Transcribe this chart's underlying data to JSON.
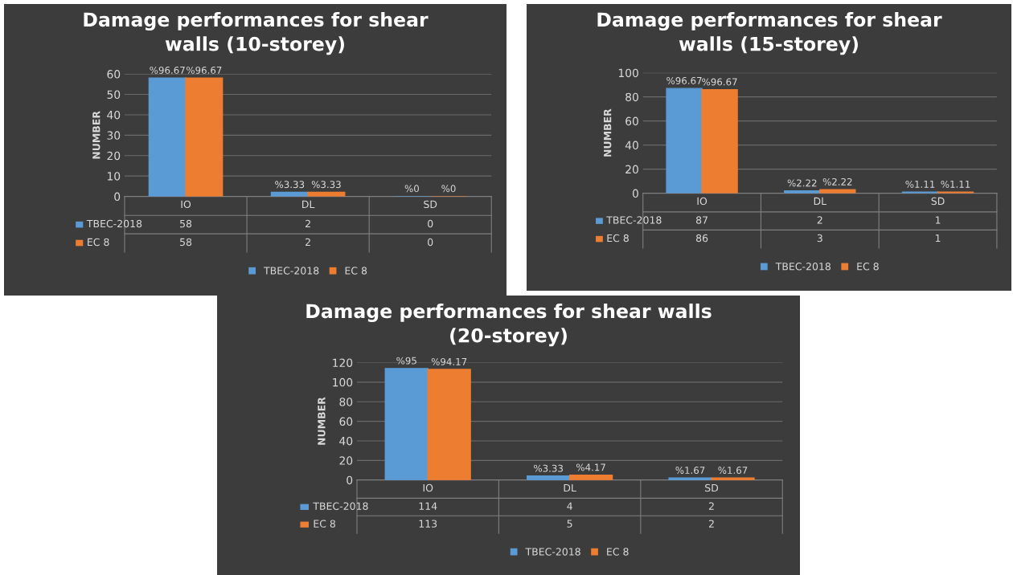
{
  "chart_data": [
    {
      "type": "bar",
      "title": "Damage performances for shear walls (10-storey)",
      "ylabel": "NUMBER",
      "categories": [
        "IO",
        "DL",
        "SD"
      ],
      "ylim": [
        0,
        60
      ],
      "yticks": [
        0,
        10,
        20,
        30,
        40,
        50,
        60
      ],
      "grid": "y",
      "legend": "bottom",
      "data_labels": true,
      "series": [
        {
          "name": "TBEC-2018",
          "color": "#5b9bd5",
          "values": [
            58,
            2,
            0
          ]
        },
        {
          "name": "EC 8",
          "color": "#ed7d31",
          "values": [
            58,
            2,
            0
          ]
        }
      ],
      "annotations": [
        {
          "text": "%96.67",
          "x": "IO",
          "y": 58
        },
        {
          "text": "%96.67",
          "x": "IO",
          "y": 58
        },
        {
          "text": "%3.33",
          "x": "DL",
          "y": 2
        },
        {
          "text": "%3.33",
          "x": "DL",
          "y": 2
        },
        {
          "text": "%0",
          "x": "SD",
          "y": 0
        },
        {
          "text": "%0",
          "x": "SD",
          "y": 0
        }
      ]
    },
    {
      "type": "bar",
      "title": "Damage performances for shear walls (15-storey)",
      "ylabel": "NUMBER",
      "categories": [
        "IO",
        "DL",
        "SD"
      ],
      "ylim": [
        0,
        100
      ],
      "yticks": [
        0,
        20,
        40,
        60,
        80,
        100
      ],
      "grid": "y",
      "legend": "bottom",
      "data_labels": true,
      "series": [
        {
          "name": "TBEC-2018",
          "color": "#5b9bd5",
          "values": [
            87,
            2,
            1
          ]
        },
        {
          "name": "EC 8",
          "color": "#ed7d31",
          "values": [
            86,
            3,
            1
          ]
        }
      ],
      "annotations": [
        {
          "text": "%96.67",
          "x": "IO",
          "y": 87
        },
        {
          "text": "%96.67",
          "x": "IO",
          "y": 86
        },
        {
          "text": "%2.22",
          "x": "DL",
          "y": 2
        },
        {
          "text": "%2.22",
          "x": "DL",
          "y": 3
        },
        {
          "text": "%1.11",
          "x": "SD",
          "y": 1
        },
        {
          "text": "%1.11",
          "x": "SD",
          "y": 1
        }
      ]
    },
    {
      "type": "bar",
      "title": "Damage performances for shear walls (20-storey)",
      "ylabel": "NUMBER",
      "categories": [
        "IO",
        "DL",
        "SD"
      ],
      "ylim": [
        0,
        120
      ],
      "yticks": [
        0,
        20,
        40,
        60,
        80,
        100,
        120
      ],
      "grid": "y",
      "legend": "bottom",
      "data_labels": true,
      "series": [
        {
          "name": "TBEC-2018",
          "color": "#5b9bd5",
          "values": [
            114,
            4,
            2
          ]
        },
        {
          "name": "EC 8",
          "color": "#ed7d31",
          "values": [
            113,
            5,
            2
          ]
        }
      ],
      "annotations": [
        {
          "text": "%95",
          "x": "IO",
          "y": 114
        },
        {
          "text": "%94.17",
          "x": "IO",
          "y": 113
        },
        {
          "text": "%3.33",
          "x": "DL",
          "y": 4
        },
        {
          "text": "%4.17",
          "x": "DL",
          "y": 5
        },
        {
          "text": "%1.67",
          "x": "SD",
          "y": 2
        },
        {
          "text": "%1.67",
          "x": "SD",
          "y": 2
        }
      ]
    }
  ]
}
